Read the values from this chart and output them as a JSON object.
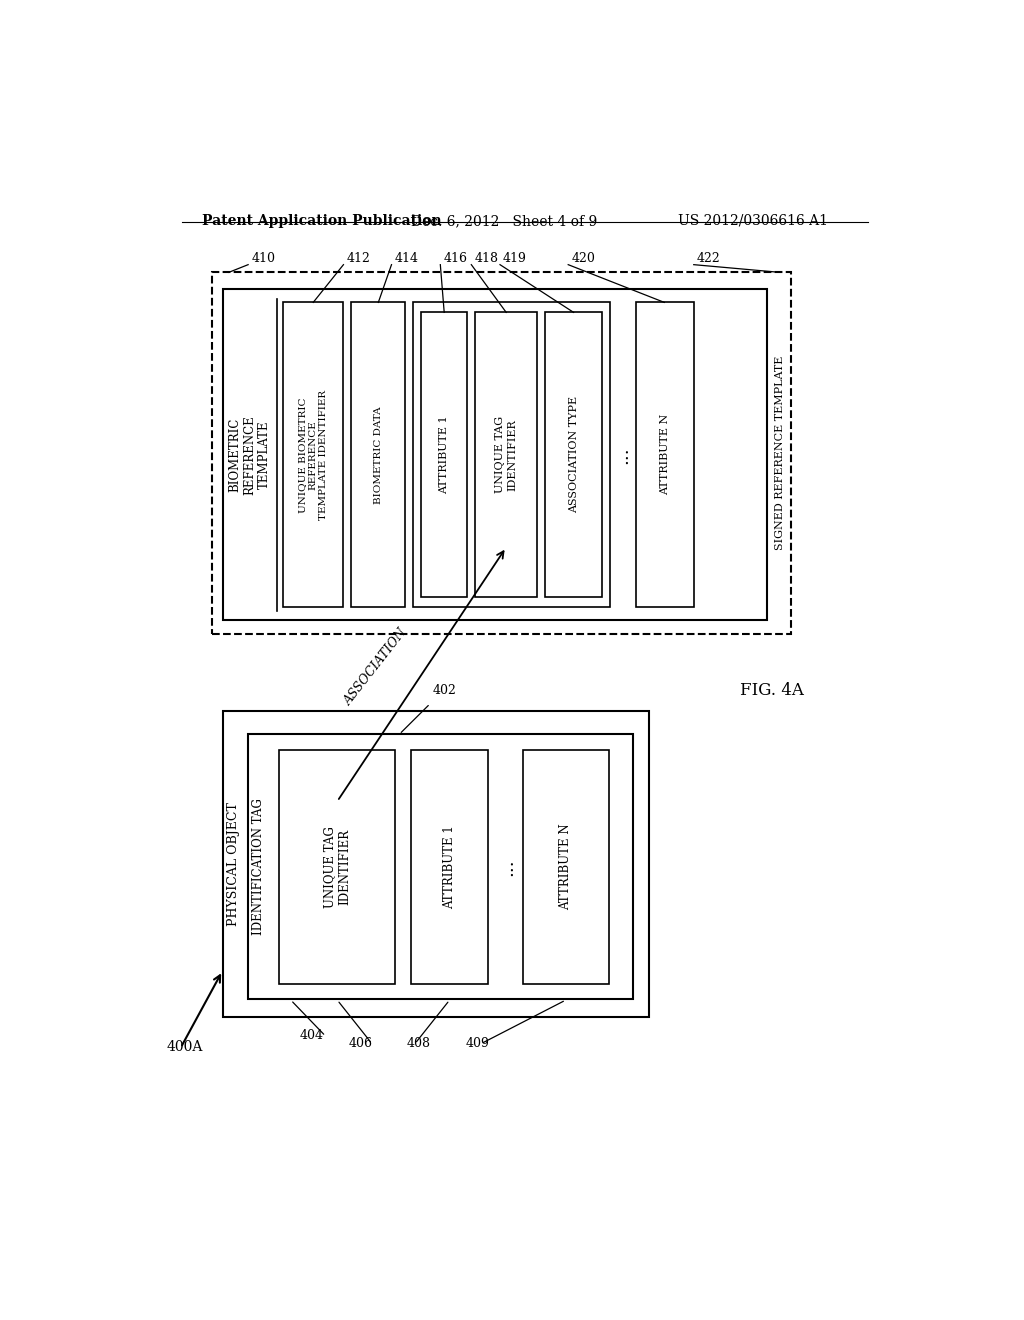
{
  "header_left": "Patent Application Publication",
  "header_mid": "Dec. 6, 2012   Sheet 4 of 9",
  "header_right": "US 2012/0306616 A1",
  "fig_label": "FIG. 4A",
  "background_color": "#ffffff",
  "text_color": "#000000"
}
